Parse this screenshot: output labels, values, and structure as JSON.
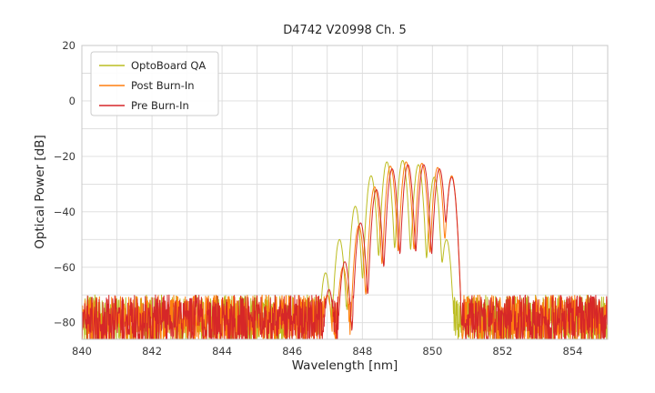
{
  "chart_data": {
    "type": "line",
    "title": "D4742 V20998 Ch. 5",
    "xlabel": "Wavelength [nm]",
    "ylabel": "Optical Power [dB]",
    "xlim": [
      840,
      855
    ],
    "ylim": [
      -86,
      20
    ],
    "x_ticks": [
      {
        "value": 840,
        "label": "840"
      },
      {
        "value": 842,
        "label": "842"
      },
      {
        "value": 844,
        "label": "844"
      },
      {
        "value": 846,
        "label": "846"
      },
      {
        "value": 848,
        "label": "848"
      },
      {
        "value": 850,
        "label": "850"
      },
      {
        "value": 852,
        "label": "852"
      },
      {
        "value": 854,
        "label": "854"
      }
    ],
    "y_ticks": [
      {
        "value": 20,
        "label": "20"
      },
      {
        "value": 0,
        "label": "0"
      },
      {
        "value": -20,
        "label": "−20"
      },
      {
        "value": -40,
        "label": "−40"
      },
      {
        "value": -60,
        "label": "−60"
      },
      {
        "value": -80,
        "label": "−80"
      }
    ],
    "x_grid_step": 1,
    "y_grid_step": 10,
    "grid": true,
    "grid_color": "#dcdcdc",
    "frame_color": "#c8c8c8",
    "legend_position": "upper left",
    "mode_sigma_nm": 0.08,
    "noise_top_db": -70,
    "noise_depth_db": 18,
    "sample_step_nm": 0.01,
    "series": [
      {
        "name": "OptoBoard QA",
        "color": "#bcbd22",
        "seed": 101,
        "modes": [
          [
            846.55,
            -72
          ],
          [
            846.95,
            -62
          ],
          [
            847.35,
            -50
          ],
          [
            847.8,
            -38
          ],
          [
            848.25,
            -27
          ],
          [
            848.7,
            -22
          ],
          [
            849.15,
            -21.5
          ],
          [
            849.6,
            -23
          ],
          [
            850.05,
            -27.5
          ],
          [
            850.4,
            -50
          ]
        ]
      },
      {
        "name": "Post Burn-In",
        "color": "#ff7f0e",
        "seed": 202,
        "modes": [
          [
            847.0,
            -70
          ],
          [
            847.45,
            -60
          ],
          [
            847.9,
            -45
          ],
          [
            848.35,
            -31
          ],
          [
            848.8,
            -23.5
          ],
          [
            849.25,
            -22
          ],
          [
            849.7,
            -22.5
          ],
          [
            850.15,
            -24
          ],
          [
            850.55,
            -27
          ]
        ]
      },
      {
        "name": "Pre Burn-In",
        "color": "#d62728",
        "seed": 303,
        "modes": [
          [
            847.05,
            -68
          ],
          [
            847.5,
            -58
          ],
          [
            847.95,
            -44
          ],
          [
            848.4,
            -32
          ],
          [
            848.85,
            -24.5
          ],
          [
            849.3,
            -23
          ],
          [
            849.75,
            -23
          ],
          [
            850.2,
            -24.5
          ],
          [
            850.55,
            -27.5
          ]
        ]
      }
    ]
  }
}
